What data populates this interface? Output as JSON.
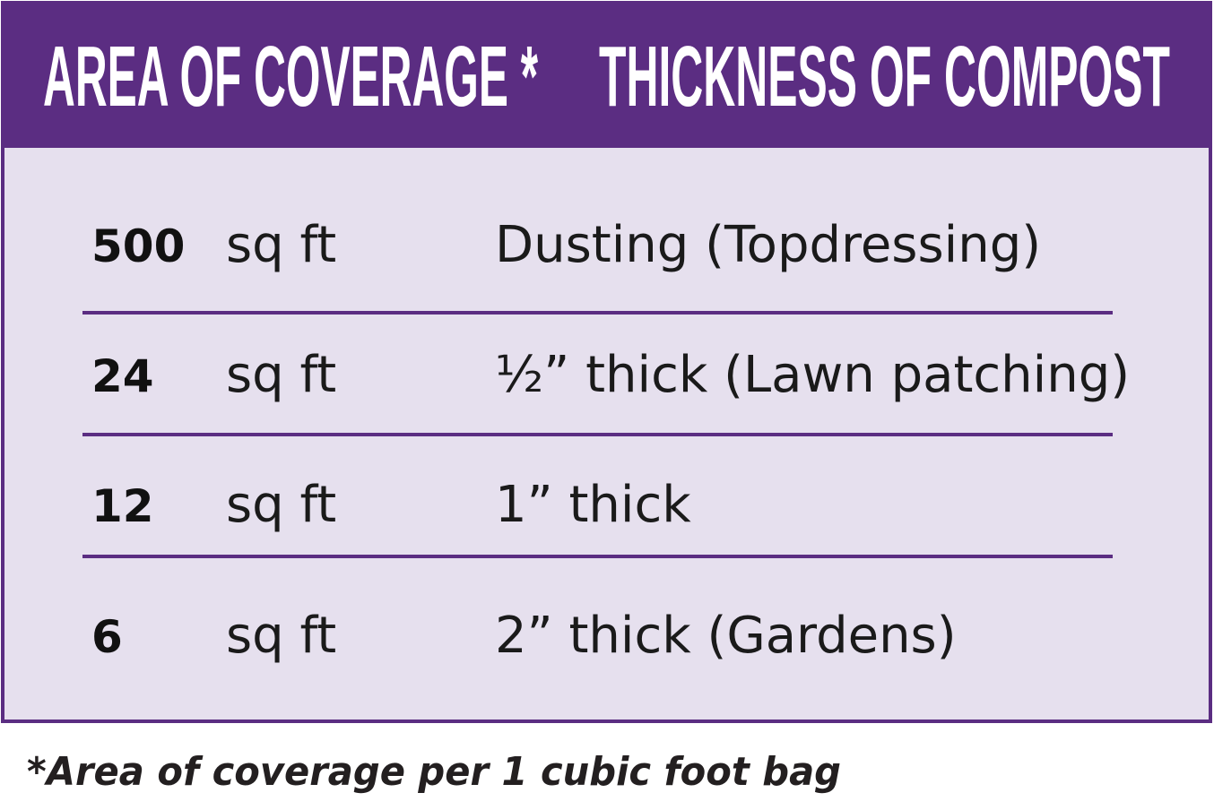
{
  "table": {
    "header": [
      "AREA OF COVERAGE *",
      "THICKNESS OF COMPOST"
    ],
    "rows": [
      [
        "500",
        "sq ft",
        "Dusting (Topdressing)"
      ],
      [
        "24",
        "sq ft",
        "½” thick (Lawn patching)"
      ],
      [
        "12",
        "sq ft",
        "1” thick"
      ],
      [
        "6",
        "sq ft",
        "2” thick (Gardens)"
      ]
    ]
  },
  "footnote": "*Area of coverage per 1 cubic foot bag"
}
